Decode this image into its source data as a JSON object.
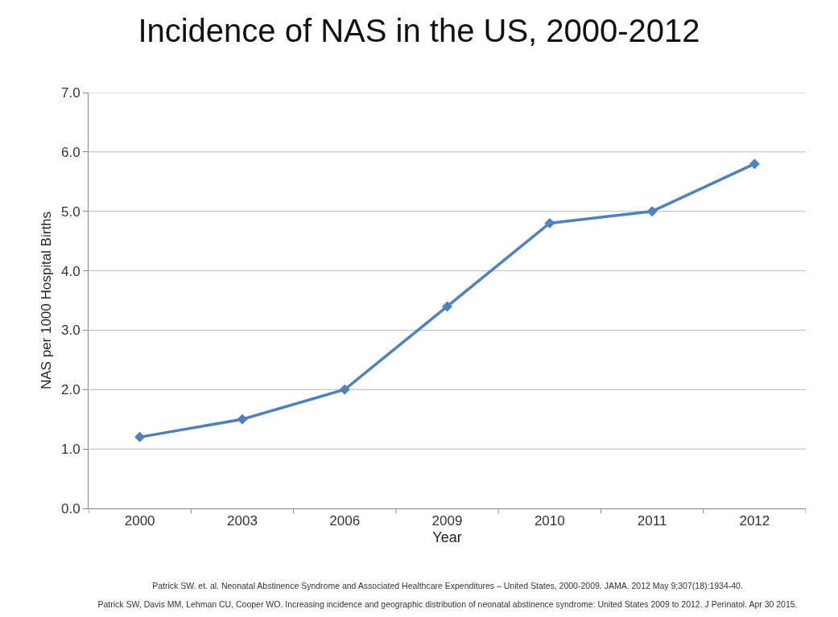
{
  "chart_data": {
    "type": "line",
    "title": "Incidence of NAS in the US, 2000-2012",
    "xlabel": "Year",
    "ylabel": "NAS per 1000 Hospital Births",
    "categories": [
      "2000",
      "2003",
      "2006",
      "2009",
      "2010",
      "2011",
      "2012"
    ],
    "series": [
      {
        "color": "#4f81bd",
        "values": [
          1.2,
          1.5,
          2.0,
          3.4,
          4.8,
          5.0,
          5.8
        ]
      }
    ],
    "ylim": [
      0,
      7
    ],
    "yticks": [
      {
        "value": 0,
        "label": "0.0"
      },
      {
        "value": 1,
        "label": "1.0"
      },
      {
        "value": 2,
        "label": "2.0"
      },
      {
        "value": 3,
        "label": "3.0"
      },
      {
        "value": 4,
        "label": "4.0"
      },
      {
        "value": 5,
        "label": "5.0"
      },
      {
        "value": 6,
        "label": "6.0"
      },
      {
        "value": 7,
        "label": "7.0"
      }
    ],
    "grid": "y",
    "marker": "diamond",
    "line_style": "solid",
    "annotations": [
      "Patrick SW. et. al. Neonatal Abstinence Syndrome and Associated Healthcare Expenditures – United States, 2000-2009. JAMA. 2012 May 9;307(18):1934-40.",
      "Patrick SW, Davis MM, Lehman CU, Cooper WO. Increasing incidence and geographic distribution of neonatal abstinence syndrome: United States 2009 to 2012. J Perinatol. Apr 30 2015."
    ]
  }
}
